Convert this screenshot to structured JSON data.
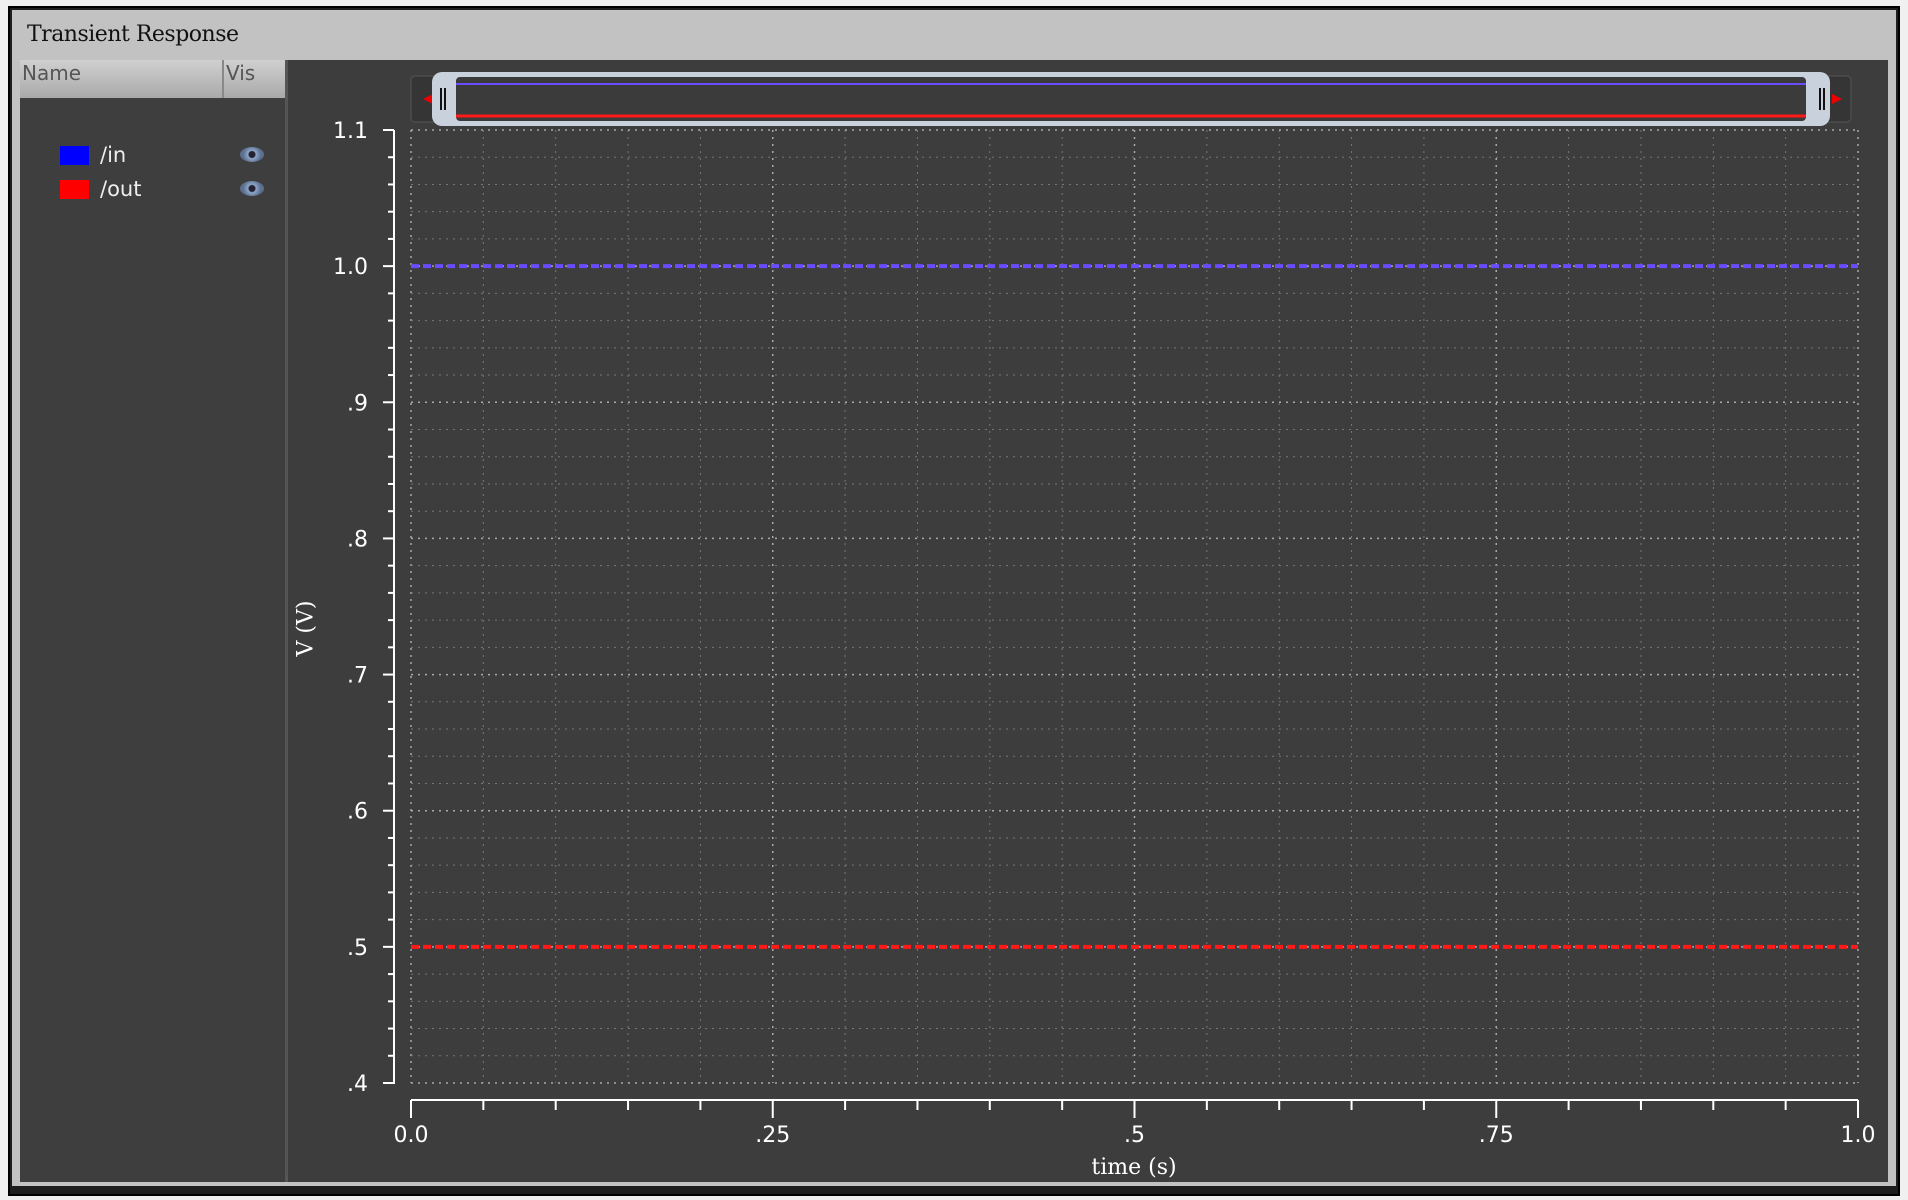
{
  "window": {
    "title": "Transient Response"
  },
  "sidebar": {
    "headers": {
      "name": "Name",
      "vis": "Vis"
    },
    "signals": [
      {
        "label": "/in",
        "color": "#0000ff",
        "visible": true,
        "icon": "eye-icon"
      },
      {
        "label": "/out",
        "color": "#ff0000",
        "visible": true,
        "icon": "eye-icon"
      }
    ]
  },
  "chart_data": {
    "type": "line",
    "title": "",
    "xlabel": "time (s)",
    "ylabel": "V (V)",
    "xlim": [
      0.0,
      1.0
    ],
    "ylim": [
      0.4,
      1.1
    ],
    "x_ticks": [
      "0.0",
      ".25",
      ".5",
      ".75",
      "1.0"
    ],
    "y_ticks": [
      ".4",
      ".5",
      ".6",
      ".7",
      ".8",
      ".9",
      "1.0",
      "1.1"
    ],
    "grid": true,
    "series": [
      {
        "name": "/in",
        "color": "#6a4cff",
        "x": [
          0.0,
          1.0
        ],
        "y": [
          1.0,
          1.0
        ],
        "style": "dashed"
      },
      {
        "name": "/out",
        "color": "#ff1a1a",
        "x": [
          0.0,
          1.0
        ],
        "y": [
          0.5,
          0.5
        ],
        "style": "dashed"
      }
    ]
  }
}
